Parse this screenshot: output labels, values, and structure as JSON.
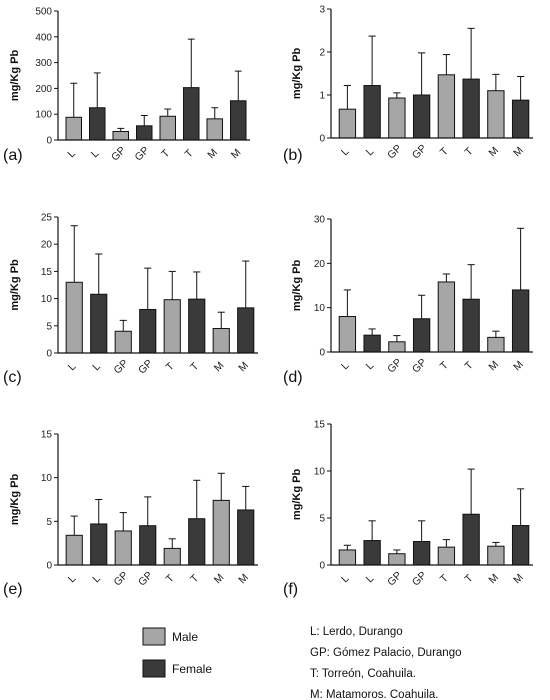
{
  "chart_data": [
    {
      "type": "bar",
      "panel_label": "(a)",
      "ylabel": "mg/Kg Pb",
      "ylim": [
        0,
        500
      ],
      "yticks": [
        0,
        100,
        200,
        300,
        400,
        500
      ],
      "categories": [
        "L",
        "L",
        "GP",
        "GP",
        "T",
        "T",
        "M",
        "M"
      ],
      "values": [
        88,
        125,
        33,
        55,
        92,
        203,
        82,
        152
      ],
      "errors": [
        132,
        135,
        12,
        40,
        28,
        188,
        43,
        115
      ],
      "groups": [
        "Male",
        "Female",
        "Male",
        "Female",
        "Male",
        "Female",
        "Male",
        "Female"
      ]
    },
    {
      "type": "bar",
      "panel_label": "(b)",
      "ylabel": "mg/Kg Pb",
      "ylim": [
        0,
        3
      ],
      "yticks": [
        0,
        1,
        2,
        3
      ],
      "categories": [
        "L",
        "L",
        "GP",
        "GP",
        "T",
        "T",
        "M",
        "M"
      ],
      "values": [
        0.67,
        1.22,
        0.93,
        1.0,
        1.47,
        1.37,
        1.1,
        0.88
      ],
      "errors": [
        0.55,
        1.15,
        0.12,
        0.98,
        0.47,
        1.18,
        0.38,
        0.55
      ],
      "groups": [
        "Male",
        "Female",
        "Male",
        "Female",
        "Male",
        "Female",
        "Male",
        "Female"
      ]
    },
    {
      "type": "bar",
      "panel_label": "(c)",
      "ylabel": "mg/Kg Pb",
      "ylim": [
        0,
        25
      ],
      "yticks": [
        0,
        5,
        10,
        15,
        20,
        25
      ],
      "categories": [
        "L",
        "L",
        "GP",
        "GP",
        "T",
        "T",
        "M",
        "M"
      ],
      "values": [
        13,
        10.8,
        4,
        8,
        9.8,
        9.9,
        4.5,
        8.3
      ],
      "errors": [
        10.4,
        7.4,
        2,
        7.6,
        5.2,
        5,
        3,
        8.6
      ],
      "groups": [
        "Male",
        "Female",
        "Male",
        "Female",
        "Male",
        "Female",
        "Male",
        "Female"
      ]
    },
    {
      "type": "bar",
      "panel_label": "(d)",
      "ylabel": "mg/Kg Pb",
      "ylim": [
        0,
        30
      ],
      "yticks": [
        0,
        10,
        20,
        30
      ],
      "categories": [
        "L",
        "L",
        "GP",
        "GP",
        "T",
        "T",
        "M",
        "M"
      ],
      "values": [
        8,
        3.8,
        2.3,
        7.5,
        15.8,
        11.9,
        3.3,
        14
      ],
      "errors": [
        6,
        1.4,
        1.4,
        5.3,
        1.8,
        7.8,
        1.4,
        13.9
      ],
      "groups": [
        "Male",
        "Female",
        "Male",
        "Female",
        "Male",
        "Female",
        "Male",
        "Female"
      ]
    },
    {
      "type": "bar",
      "panel_label": "(e)",
      "ylabel": "mg/Kg Pb",
      "ylim": [
        0,
        15
      ],
      "yticks": [
        0,
        5,
        10,
        15
      ],
      "categories": [
        "L",
        "L",
        "GP",
        "GP",
        "T",
        "T",
        "M",
        "M"
      ],
      "values": [
        3.4,
        4.7,
        3.9,
        4.5,
        1.9,
        5.3,
        7.4,
        6.3
      ],
      "errors": [
        2.2,
        2.8,
        2.1,
        3.3,
        1.1,
        4.4,
        3.1,
        2.7
      ],
      "groups": [
        "Male",
        "Female",
        "Male",
        "Female",
        "Male",
        "Female",
        "Male",
        "Female"
      ]
    },
    {
      "type": "bar",
      "panel_label": "(f)",
      "ylabel": "mg/Kg Pb",
      "ylim": [
        0,
        15
      ],
      "yticks": [
        0,
        5,
        10,
        15
      ],
      "categories": [
        "L",
        "L",
        "GP",
        "GP",
        "T",
        "T",
        "M",
        "M"
      ],
      "values": [
        1.6,
        2.6,
        1.2,
        2.5,
        1.9,
        5.4,
        2.0,
        4.2
      ],
      "errors": [
        0.5,
        2.1,
        0.4,
        2.2,
        0.8,
        4.8,
        0.4,
        3.9
      ],
      "groups": [
        "Male",
        "Female",
        "Male",
        "Female",
        "Male",
        "Female",
        "Male",
        "Female"
      ]
    }
  ],
  "legend": {
    "placement": "bottom-left",
    "items": [
      {
        "label": "Male",
        "color": "#a6a6a6"
      },
      {
        "label": "Female",
        "color": "#3a3a3a"
      }
    ]
  },
  "notes": [
    "L: Lerdo, Durango",
    "GP: Gómez Palacio, Durango",
    "T: Torreón, Coahuila.",
    "M: Matamoros. Coahuila."
  ],
  "colors": {
    "male": "#a6a6a6",
    "female": "#3a3a3a",
    "axis": "#111111"
  }
}
